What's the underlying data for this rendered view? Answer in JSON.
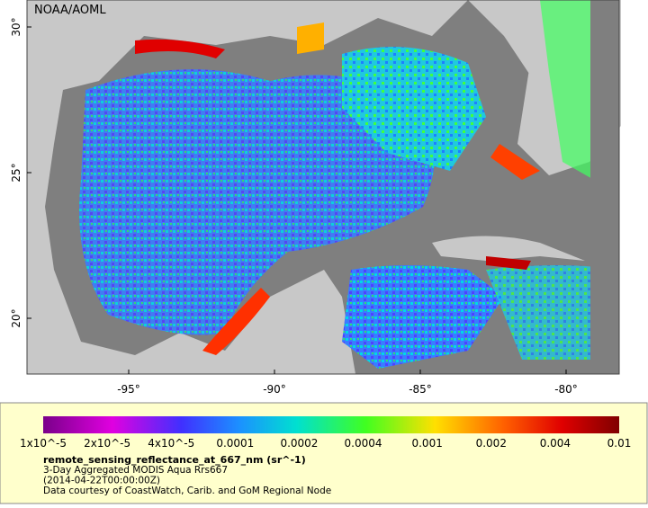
{
  "map": {
    "attribution": "NOAA/AOML",
    "lat_labels": [
      "30°",
      "25°",
      "20°"
    ],
    "lon_labels": [
      "-95°",
      "-90°",
      "-85°",
      "-80°"
    ],
    "colorbar_labels": [
      "1x10^-5",
      "2x10^-5",
      "4x10^-5",
      "0.0001",
      "0.0002",
      "0.0004",
      "0.001",
      "0.002",
      "0.004",
      "0.01"
    ],
    "legend": {
      "title": "remote_sensing_reflectance_at_667_nm (sr^-1)",
      "lines": [
        "3-Day Aggregated MODIS Aqua Rrs667",
        "(2014-04-22T00:00:00Z)",
        "Data courtesy of CoastWatch, Carib. and GoM Regional Node"
      ]
    }
  }
}
